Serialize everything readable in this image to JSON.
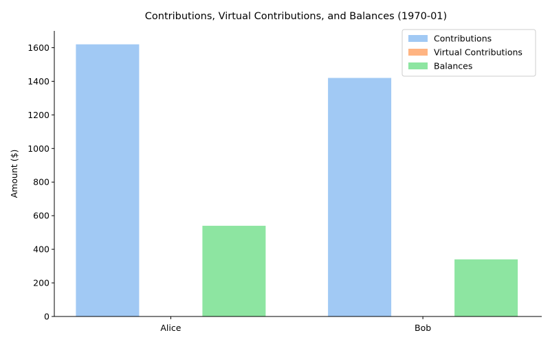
{
  "chart_data": {
    "type": "bar",
    "title": "Contributions, Virtual Contributions, and Balances (1970-01)",
    "xlabel": "",
    "ylabel": "Amount ($)",
    "categories": [
      "Alice",
      "Bob"
    ],
    "ylim": [
      0,
      1700
    ],
    "yticks": [
      0,
      200,
      400,
      600,
      800,
      1000,
      1200,
      1400,
      1600
    ],
    "grid": false,
    "legend_position": "top-right",
    "series": [
      {
        "name": "Contributions",
        "values": [
          1620,
          1420
        ],
        "color": "#a1c9f4"
      },
      {
        "name": "Virtual Contributions",
        "values": [
          0,
          0
        ],
        "color": "#ffb482"
      },
      {
        "name": "Balances",
        "values": [
          540,
          340
        ],
        "color": "#8de5a1"
      }
    ]
  }
}
